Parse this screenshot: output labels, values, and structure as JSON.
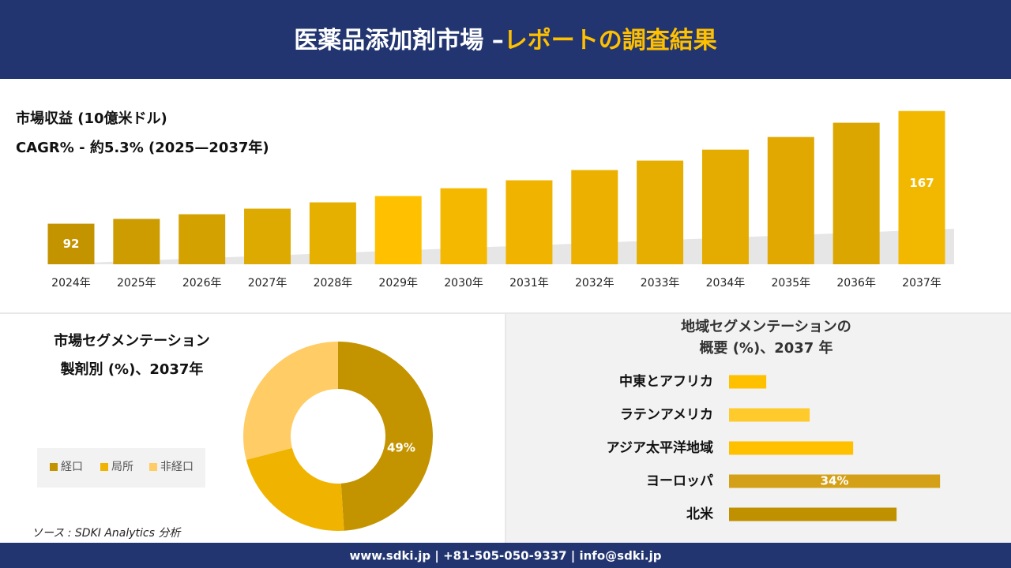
{
  "header": {
    "title": "医薬品添加剤市場 –",
    "highlight": "レポートの調査結果"
  },
  "source": "ソース : SDKI Analytics 分析",
  "footer": "www.sdki.jp | +81-505-050-9337 | info@sdki.jp",
  "chart_data": [
    {
      "type": "bar",
      "title": "市場収益 (10億米ドル)",
      "subtitle": "CAGR% - 約5.3% (2025—2037年)",
      "categories": [
        "2024年",
        "2025年",
        "2026年",
        "2027年",
        "2028年",
        "2029年",
        "2030年",
        "2031年",
        "2032年",
        "2033年",
        "2034年",
        "2035年",
        "2036年",
        "2037年"
      ],
      "values": [
        92,
        95.2,
        98.3,
        102,
        106.2,
        110.4,
        115.6,
        120.9,
        127.7,
        134,
        141.3,
        149.7,
        159.2,
        167
      ],
      "value_labels": [
        "92",
        null,
        null,
        null,
        null,
        null,
        null,
        null,
        null,
        null,
        null,
        null,
        null,
        "167"
      ],
      "colors": [
        "#c49400",
        "#cc9c00",
        "#d4a200",
        "#dcaa00",
        "#e6b000",
        "#ffc000",
        "#f5b800",
        "#f0b400",
        "#ebb000",
        "#e6ae00",
        "#e4ac00",
        "#e0a800",
        "#dca600",
        "#f2b800"
      ],
      "ylim": [
        65,
        170
      ]
    },
    {
      "type": "donut",
      "title": "市場セグメンテーション",
      "subtitle": "製剤別 (%)、2037年",
      "categories": [
        "経口",
        "局所",
        "非経口"
      ],
      "values": [
        49,
        22,
        29
      ],
      "value_labels": [
        "49%",
        null,
        null
      ],
      "colors": [
        "#c49400",
        "#f0b400",
        "#ffcc66"
      ],
      "legend": "bottom-left"
    },
    {
      "type": "hbar",
      "title": "地域セグメンテーションの",
      "subtitle": "概要 (%)、2037 年",
      "categories": [
        "中東とアフリカ",
        "ラテンアメリカ",
        "アジア太平洋地域",
        "ヨーロッパ",
        "北米"
      ],
      "values": [
        6,
        13,
        20,
        34,
        27
      ],
      "value_labels": [
        null,
        null,
        null,
        "34%",
        null
      ],
      "colors": [
        "#ffc000",
        "#ffca2c",
        "#ffc000",
        "#d4a017",
        "#bf9000"
      ],
      "xlim": [
        0,
        35
      ]
    }
  ]
}
